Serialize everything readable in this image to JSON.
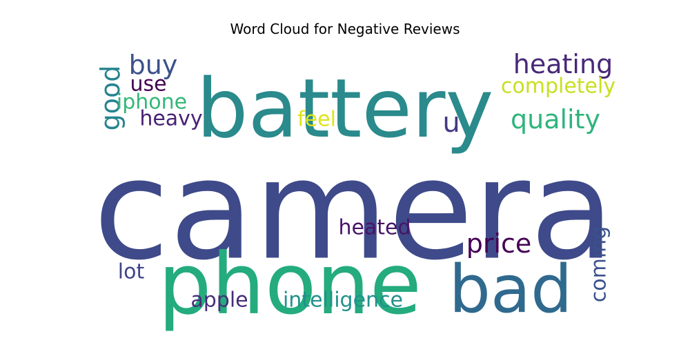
{
  "chart_data": {
    "type": "wordcloud",
    "title": "Word Cloud for Negative Reviews",
    "palette": "viridis",
    "words": [
      {
        "text": "camera",
        "weight": 1.0,
        "color": "#3e4a89",
        "rotated": false
      },
      {
        "text": "battery",
        "weight": 0.58,
        "color": "#2a8a8c",
        "rotated": false
      },
      {
        "text": "phone",
        "weight": 0.6,
        "color": "#24ab7e",
        "rotated": false
      },
      {
        "text": "bad",
        "weight": 0.46,
        "color": "#30698e",
        "rotated": false
      },
      {
        "text": "heating",
        "weight": 0.2,
        "color": "#482878",
        "rotated": false
      },
      {
        "text": "quality",
        "weight": 0.2,
        "color": "#2fb47c",
        "rotated": false
      },
      {
        "text": "buy",
        "weight": 0.2,
        "color": "#3b528b",
        "rotated": false
      },
      {
        "text": "good",
        "weight": 0.2,
        "color": "#25848e",
        "rotated": true
      },
      {
        "text": "completely",
        "weight": 0.16,
        "color": "#c8e020",
        "rotated": false
      },
      {
        "text": "use",
        "weight": 0.16,
        "color": "#440154",
        "rotated": false
      },
      {
        "text": "iphone",
        "weight": 0.16,
        "color": "#35b779",
        "rotated": false
      },
      {
        "text": "heavy",
        "weight": 0.16,
        "color": "#482173",
        "rotated": false
      },
      {
        "text": "feel",
        "weight": 0.16,
        "color": "#dfe318",
        "rotated": false
      },
      {
        "text": "u",
        "weight": 0.2,
        "color": "#443983",
        "rotated": false
      },
      {
        "text": "price",
        "weight": 0.2,
        "color": "#440154",
        "rotated": false
      },
      {
        "text": "heated",
        "weight": 0.16,
        "color": "#481467",
        "rotated": false
      },
      {
        "text": "coming",
        "weight": 0.16,
        "color": "#3b528b",
        "rotated": true
      },
      {
        "text": "lot",
        "weight": 0.16,
        "color": "#414487",
        "rotated": false
      },
      {
        "text": "apple",
        "weight": 0.16,
        "color": "#472d7b",
        "rotated": false
      },
      {
        "text": "intelligence",
        "weight": 0.16,
        "color": "#21918c",
        "rotated": false
      }
    ]
  }
}
